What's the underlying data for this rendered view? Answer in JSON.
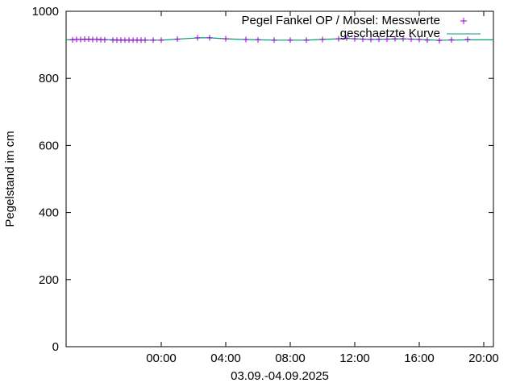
{
  "chart_data": {
    "type": "line",
    "title": "",
    "xlabel": "03.09.-04.09.2025",
    "ylabel": "Pegelstand im cm",
    "ylim": [
      0,
      1000
    ],
    "xlim_hours": [
      -5.9,
      20.6
    ],
    "yticks": [
      0,
      200,
      400,
      600,
      800,
      1000
    ],
    "xticks": [
      {
        "hour": 0,
        "label": "00:00"
      },
      {
        "hour": 4,
        "label": "04:00"
      },
      {
        "hour": 8,
        "label": "08:00"
      },
      {
        "hour": 12,
        "label": "12:00"
      },
      {
        "hour": 16,
        "label": "16:00"
      },
      {
        "hour": 20,
        "label": "20:00"
      }
    ],
    "grid": false,
    "legend_position": "top-right",
    "series": [
      {
        "name": "Pegel Fankel OP / Mosel: Messwerte",
        "kind": "points",
        "color": "#9400d3",
        "x_hours": [
          -5.5,
          -5.25,
          -5.0,
          -4.75,
          -4.5,
          -4.25,
          -4.0,
          -3.75,
          -3.5,
          -3.0,
          -2.75,
          -2.5,
          -2.25,
          -2.0,
          -1.75,
          -1.5,
          -1.25,
          -1.0,
          -0.5,
          0.0,
          1.0,
          2.25,
          3.0,
          4.0,
          5.25,
          6.0,
          7.0,
          8.0,
          9.0,
          10.0,
          11.0,
          11.5,
          12.0,
          12.5,
          13.0,
          13.5,
          14.0,
          14.5,
          15.0,
          15.5,
          16.0,
          16.5,
          17.25,
          18.0,
          19.0
        ],
        "values": [
          915,
          916,
          916,
          917,
          917,
          916,
          916,
          915,
          915,
          914,
          914,
          914,
          914,
          914,
          914,
          914,
          914,
          914,
          914,
          914,
          917,
          921,
          921,
          918,
          916,
          915,
          914,
          914,
          914,
          916,
          918,
          920,
          918,
          917,
          916,
          917,
          917,
          918,
          918,
          917,
          916,
          914,
          913,
          915,
          916
        ]
      },
      {
        "name": "geschaetzte Kurve",
        "kind": "line",
        "color": "#009e73",
        "x_hours": [
          -5.9,
          -5.0,
          -4.0,
          -3.0,
          -2.0,
          -1.0,
          0.0,
          1.0,
          2.0,
          2.5,
          3.0,
          4.0,
          5.0,
          6.0,
          7.0,
          8.0,
          9.0,
          10.0,
          11.0,
          11.5,
          12.0,
          13.0,
          14.0,
          15.0,
          16.0,
          17.0,
          18.0,
          19.0,
          20.0,
          20.6
        ],
        "values": [
          915,
          916,
          916,
          915,
          914,
          914,
          914,
          917,
          920,
          921,
          921,
          918,
          916,
          915,
          914,
          914,
          914,
          916,
          918,
          919,
          918,
          916,
          917,
          918,
          916,
          914,
          914,
          915,
          915,
          915
        ]
      }
    ]
  }
}
